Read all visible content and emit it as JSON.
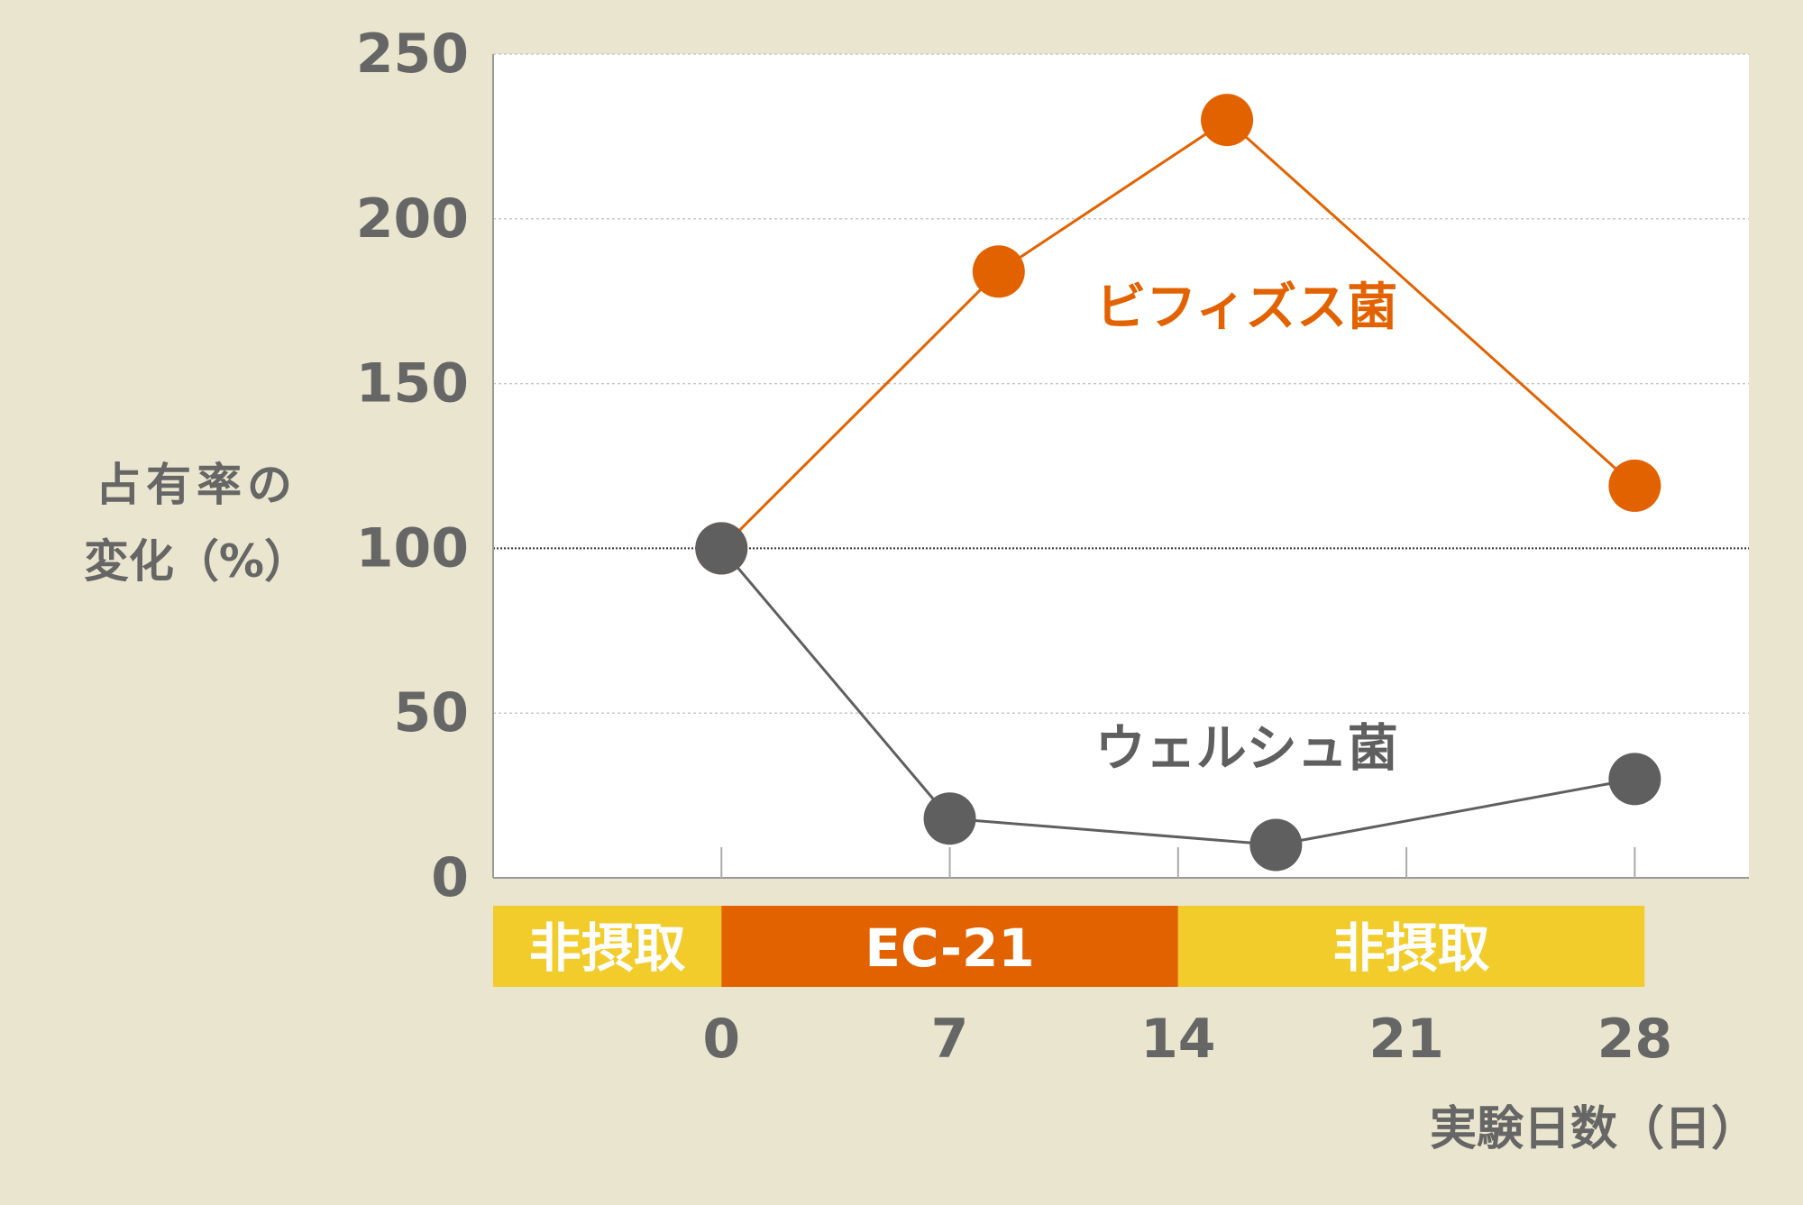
{
  "chart_data": {
    "type": "line",
    "ylabel_lines": [
      "占有率の",
      "変化（%）"
    ],
    "xlabel": "実験日数（日）",
    "x_ticks": [
      "0",
      "7",
      "14",
      "21",
      "28"
    ],
    "y_ticks": [
      "0",
      "50",
      "100",
      "150",
      "200",
      "250"
    ],
    "ylim": [
      0,
      250
    ],
    "xlim": [
      -7,
      31.5
    ],
    "grid": "horizontal dotted",
    "reference_line": 100,
    "series": [
      {
        "name": "ビフィズス菌",
        "color": "#e36200",
        "x": [
          0,
          8.5,
          15.5,
          28
        ],
        "y": [
          100,
          184,
          230,
          119
        ]
      },
      {
        "name": "ウェルシュ菌",
        "color": "#5f5f5f",
        "x": [
          0,
          7,
          17,
          28
        ],
        "y": [
          100,
          18,
          10,
          30
        ]
      }
    ],
    "phases": [
      {
        "label": "非摂取",
        "start": -7,
        "end": 0,
        "color": "#f2cc2a"
      },
      {
        "label": "EC-21",
        "start": 0,
        "end": 14,
        "color": "#e36200"
      },
      {
        "label": "非摂取",
        "start": 14,
        "end": 28.3,
        "color": "#f2cc2a"
      }
    ]
  }
}
